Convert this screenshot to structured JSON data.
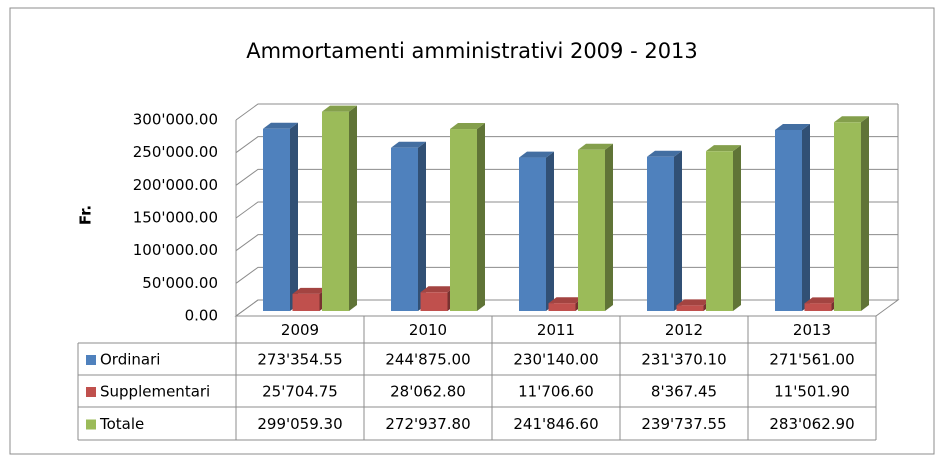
{
  "chart_data": {
    "type": "bar3d",
    "title": "Ammortamenti amministrativi 2009 - 2013",
    "y_label": "Fr.",
    "categories": [
      "2009",
      "2010",
      "2011",
      "2012",
      "2013"
    ],
    "series": [
      {
        "name": "Ordinari",
        "color": "#4f81bd",
        "values": [
          273354.55,
          244875.0,
          230140.0,
          231370.1,
          271561.0
        ],
        "value_labels": [
          "273'354.55",
          "244'875.00",
          "230'140.00",
          "231'370.10",
          "271'561.00"
        ]
      },
      {
        "name": "Supplementari",
        "color": "#c0504d",
        "values": [
          25704.75,
          28062.8,
          11706.6,
          8367.45,
          11501.9
        ],
        "value_labels": [
          "25'704.75",
          "28'062.80",
          "11'706.60",
          "8'367.45",
          "11'501.90"
        ]
      },
      {
        "name": "Totale",
        "color": "#9bbb59",
        "values": [
          299059.3,
          272937.8,
          241846.6,
          239737.55,
          283062.9
        ],
        "value_labels": [
          "299'059.30",
          "272'937.80",
          "241'846.60",
          "239'737.55",
          "283'062.90"
        ]
      }
    ],
    "ylim": [
      0,
      300000
    ],
    "yticks": [
      {
        "value": 0,
        "label": "0.00"
      },
      {
        "value": 50000,
        "label": "50'000.00"
      },
      {
        "value": 100000,
        "label": "100'000.00"
      },
      {
        "value": 150000,
        "label": "150'000.00"
      },
      {
        "value": 200000,
        "label": "200'000.00"
      },
      {
        "value": 250000,
        "label": "250'000.00"
      },
      {
        "value": 300000,
        "label": "300'000.00"
      }
    ],
    "grid": true,
    "data_table": true
  }
}
